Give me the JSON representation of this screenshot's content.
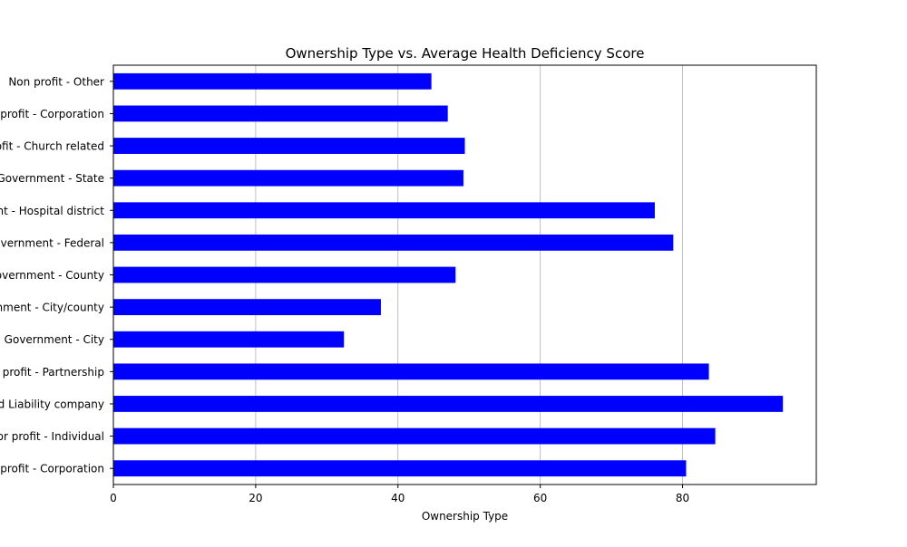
{
  "chart_data": {
    "type": "bar",
    "orientation": "horizontal",
    "title": "Ownership Type vs. Average Health Deficiency Score",
    "xlabel": "Ownership Type",
    "ylabel": "",
    "xlim": [
      0,
      98.8
    ],
    "x_ticks": [
      "0",
      "20",
      "40",
      "60",
      "80"
    ],
    "grid": "x-only",
    "legend": "none",
    "bar_color": "#0000ff",
    "categories": [
      "For profit - Corporation",
      "For profit - Individual",
      "For profit - Limited Liability company",
      "For profit - Partnership",
      "Government - City",
      "Government - City/county",
      "Government - County",
      "Government - Federal",
      "Government - Hospital district",
      "Government - State",
      "Non profit - Church related",
      "Non profit - Corporation",
      "Non profit - Other"
    ],
    "values": [
      80.5,
      84.6,
      94.1,
      83.7,
      32.4,
      37.6,
      48.1,
      78.7,
      76.1,
      49.2,
      49.4,
      47.0,
      44.7
    ]
  }
}
